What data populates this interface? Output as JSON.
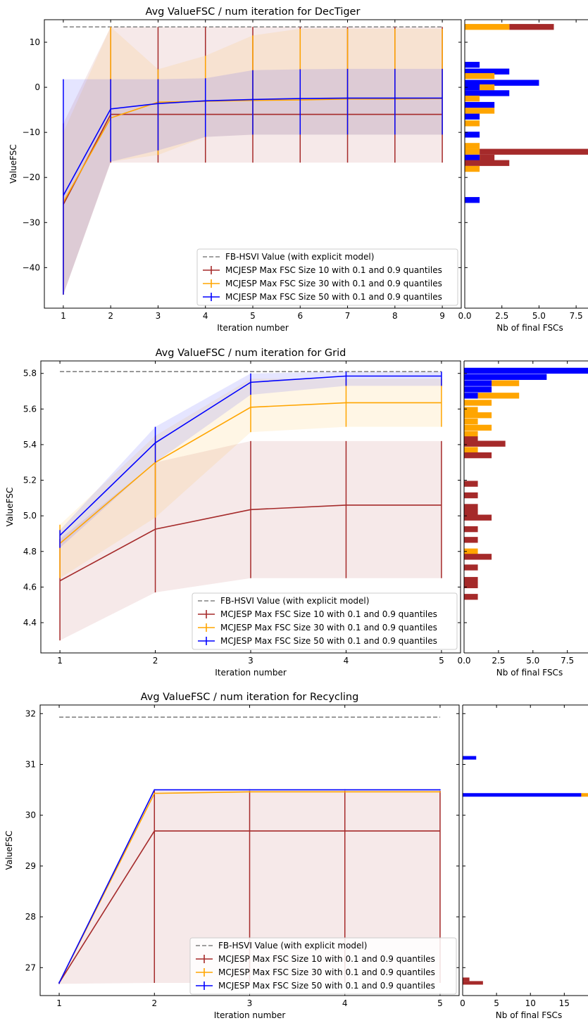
{
  "colors": {
    "fbhsvi": "#808080",
    "size10": "#A52A2A",
    "size30": "#FFA500",
    "size50": "#0000FF"
  },
  "shared": {
    "ylabel": "ValueFSC",
    "xlabel": "Iteration number",
    "hist_xlabel": "Nb of final FSCs",
    "legend": [
      "FB-HSVI Value (with explicit model)",
      "MCJESP Max FSC Size 10 with 0.1 and 0.9 quantiles",
      "MCJESP Max FSC Size 30 with 0.1 and 0.9 quantiles",
      "MCJESP Max FSC Size 50 with 0.1 and 0.9 quantiles"
    ]
  },
  "chart_data": [
    {
      "type": "line",
      "title": "Avg ValueFSC / num iteration for DecTiger",
      "xlabel": "Iteration number",
      "ylabel": "ValueFSC",
      "x": [
        1,
        2,
        3,
        4,
        5,
        6,
        7,
        8,
        9
      ],
      "xlim": [
        0.6,
        9.4
      ],
      "ylim": [
        -49,
        15
      ],
      "xticks": [
        "1",
        "2",
        "3",
        "4",
        "5",
        "6",
        "7",
        "8",
        "9"
      ],
      "yticks": [
        10,
        0,
        -10,
        -20,
        -30,
        -40
      ],
      "yticklabels": [
        "10",
        "0",
        "−10",
        "−20",
        "−30",
        "−40"
      ],
      "legend_loc": "lower right",
      "reference": {
        "name": "FB-HSVI Value (with explicit model)",
        "value": 13.4
      },
      "series": [
        {
          "name": "MCJESP Max FSC Size 10 with 0.1 and 0.9 quantiles",
          "color": "size10",
          "values": [
            -26,
            -6,
            -6,
            -6,
            -6,
            -6,
            -6,
            -6,
            -6
          ],
          "low": [
            -46,
            -16.7,
            -16.7,
            -16.7,
            -16.7,
            -16.7,
            -16.7,
            -16.7,
            -16.7
          ],
          "high": [
            -8,
            13.4,
            13.4,
            13.4,
            13.4,
            13.4,
            13.4,
            13.4,
            13.4
          ]
        },
        {
          "name": "MCJESP Max FSC Size 30 with 0.1 and 0.9 quantiles",
          "color": "size30",
          "values": [
            -25.5,
            -6.8,
            -3.3,
            -3.1,
            -2.9,
            -2.8,
            -2.6,
            -2.6,
            -2.5
          ],
          "low": [
            -46,
            -16.5,
            -15,
            -11,
            -10.5,
            -10.5,
            -10.5,
            -10.5,
            -10.5
          ],
          "high": [
            -10,
            13.4,
            4,
            7,
            11.5,
            13,
            13,
            13,
            13
          ]
        },
        {
          "name": "MCJESP Max FSC Size 50 with 0.1 and 0.9 quantiles",
          "color": "size50",
          "values": [
            -24,
            -4.8,
            -3.6,
            -3,
            -2.7,
            -2.5,
            -2.4,
            -2.4,
            -2.4
          ],
          "low": [
            -46,
            -16.5,
            -14,
            -11,
            -10.5,
            -10.5,
            -10.5,
            -10.5,
            -10.5
          ],
          "high": [
            1.8,
            1.8,
            1.8,
            2,
            3.8,
            4,
            4.1,
            4.1,
            4.1
          ]
        }
      ],
      "histogram": {
        "xlabel": "Nb of final FSCs",
        "xlim": [
          0,
          8.3
        ],
        "xticks": [
          0,
          2.5,
          5,
          7.5
        ],
        "xticklabels": [
          "0.0",
          "2.5",
          "5.0",
          "7.5"
        ],
        "bin_height": 1.3,
        "bars": [
          {
            "y": 13.4,
            "left": 3,
            "width": 3,
            "color": "size10"
          },
          {
            "y": 13.4,
            "left": 0,
            "width": 3,
            "color": "size30"
          },
          {
            "y": 5,
            "left": 0,
            "width": 1,
            "color": "size50"
          },
          {
            "y": 3.5,
            "left": 0,
            "width": 3,
            "color": "size50"
          },
          {
            "y": 2.5,
            "left": 0,
            "width": 2,
            "color": "size30"
          },
          {
            "y": 1,
            "left": 0,
            "width": 5,
            "color": "size50"
          },
          {
            "y": 0,
            "left": 0,
            "width": 1,
            "color": "size50"
          },
          {
            "y": 0,
            "left": 1,
            "width": 1,
            "color": "size30"
          },
          {
            "y": -1.3,
            "left": 0,
            "width": 3,
            "color": "size50"
          },
          {
            "y": -2.5,
            "left": 0,
            "width": 1,
            "color": "size30"
          },
          {
            "y": -3.9,
            "left": 0,
            "width": 2,
            "color": "size50"
          },
          {
            "y": -5.2,
            "left": 0,
            "width": 2,
            "color": "size30"
          },
          {
            "y": -6.5,
            "left": 0,
            "width": 1,
            "color": "size50"
          },
          {
            "y": -8,
            "left": 0,
            "width": 1,
            "color": "size30"
          },
          {
            "y": -10.5,
            "left": 0,
            "width": 1,
            "color": "size50"
          },
          {
            "y": -13,
            "left": 0,
            "width": 1,
            "color": "size30"
          },
          {
            "y": -14.3,
            "left": 1,
            "width": 8.3,
            "color": "size10"
          },
          {
            "y": -14.3,
            "left": 0,
            "width": 1,
            "color": "size30"
          },
          {
            "y": -15.6,
            "left": 1,
            "width": 1,
            "color": "size10"
          },
          {
            "y": -15.6,
            "left": 0,
            "width": 1,
            "color": "size50"
          },
          {
            "y": -16.8,
            "left": 0,
            "width": 3,
            "color": "size10"
          },
          {
            "y": -18.1,
            "left": 0,
            "width": 1,
            "color": "size30"
          },
          {
            "y": -25,
            "left": 0,
            "width": 1,
            "color": "size50"
          }
        ]
      }
    },
    {
      "type": "line",
      "title": "Avg ValueFSC / num iteration for Grid",
      "xlabel": "Iteration number",
      "ylabel": "ValueFSC",
      "x": [
        1,
        2,
        3,
        4,
        5
      ],
      "xlim": [
        0.8,
        5.2
      ],
      "ylim": [
        4.23,
        5.87
      ],
      "xticks": [
        "1",
        "2",
        "3",
        "4",
        "5"
      ],
      "yticks": [
        5.8,
        5.6,
        5.4,
        5.2,
        5.0,
        4.8,
        4.6,
        4.4
      ],
      "yticklabels": [
        "5.8",
        "5.6",
        "5.4",
        "5.2",
        "5.0",
        "4.8",
        "4.6",
        "4.4"
      ],
      "legend_loc": "lower right",
      "reference": {
        "name": "FB-HSVI Value (with explicit model)",
        "value": 5.81
      },
      "series": [
        {
          "name": "MCJESP Max FSC Size 10 with 0.1 and 0.9 quantiles",
          "color": "size10",
          "values": [
            4.635,
            4.925,
            5.035,
            5.06,
            5.06
          ],
          "low": [
            4.3,
            4.57,
            4.65,
            4.65,
            4.65
          ],
          "high": [
            4.87,
            5.3,
            5.42,
            5.42,
            5.42
          ]
        },
        {
          "name": "MCJESP Max FSC Size 30 with 0.1 and 0.9 quantiles",
          "color": "size30",
          "values": [
            4.845,
            5.3,
            5.61,
            5.635,
            5.635
          ],
          "low": [
            4.65,
            4.99,
            5.47,
            5.5,
            5.5
          ],
          "high": [
            4.95,
            5.45,
            5.77,
            5.77,
            5.77
          ]
        },
        {
          "name": "MCJESP Max FSC Size 50 with 0.1 and 0.9 quantiles",
          "color": "size50",
          "values": [
            4.89,
            5.41,
            5.75,
            5.785,
            5.785
          ],
          "low": [
            4.82,
            5.3,
            5.68,
            5.73,
            5.73
          ],
          "high": [
            4.92,
            5.5,
            5.8,
            5.81,
            5.81
          ]
        }
      ],
      "histogram": {
        "xlabel": "Nb of final FSCs",
        "xlim": [
          0,
          9
        ],
        "xticks": [
          0,
          2.5,
          5,
          7.5
        ],
        "xticklabels": [
          "0.0",
          "2.5",
          "5.0",
          "7.5"
        ],
        "bin_height": 0.033,
        "bars": [
          {
            "y": 5.815,
            "left": 0,
            "width": 9,
            "color": "size50"
          },
          {
            "y": 5.78,
            "left": 0,
            "width": 6,
            "color": "size50"
          },
          {
            "y": 5.745,
            "left": 2,
            "width": 2,
            "color": "size30"
          },
          {
            "y": 5.745,
            "left": 0,
            "width": 2,
            "color": "size50"
          },
          {
            "y": 5.71,
            "left": 0,
            "width": 2,
            "color": "size50"
          },
          {
            "y": 5.675,
            "left": 1,
            "width": 3,
            "color": "size30"
          },
          {
            "y": 5.675,
            "left": 0,
            "width": 1,
            "color": "size50"
          },
          {
            "y": 5.635,
            "left": 0,
            "width": 2,
            "color": "size30"
          },
          {
            "y": 5.595,
            "left": 0,
            "width": 1,
            "color": "size30"
          },
          {
            "y": 5.565,
            "left": 0,
            "width": 2,
            "color": "size30"
          },
          {
            "y": 5.53,
            "left": 0,
            "width": 1,
            "color": "size30"
          },
          {
            "y": 5.495,
            "left": 0,
            "width": 2,
            "color": "size30"
          },
          {
            "y": 5.46,
            "left": 0,
            "width": 1,
            "color": "size30"
          },
          {
            "y": 5.43,
            "left": 0,
            "width": 1,
            "color": "size10"
          },
          {
            "y": 5.405,
            "left": 0,
            "width": 3,
            "color": "size10"
          },
          {
            "y": 5.37,
            "left": 0,
            "width": 1,
            "color": "size30"
          },
          {
            "y": 5.34,
            "left": 0,
            "width": 2,
            "color": "size10"
          },
          {
            "y": 5.18,
            "left": 0,
            "width": 1,
            "color": "size10"
          },
          {
            "y": 5.115,
            "left": 0,
            "width": 1,
            "color": "size10"
          },
          {
            "y": 5.05,
            "left": 0,
            "width": 1,
            "color": "size10"
          },
          {
            "y": 5.02,
            "left": 0,
            "width": 1,
            "color": "size10"
          },
          {
            "y": 4.99,
            "left": 0,
            "width": 2,
            "color": "size10"
          },
          {
            "y": 4.925,
            "left": 0,
            "width": 1,
            "color": "size10"
          },
          {
            "y": 4.865,
            "left": 0,
            "width": 1,
            "color": "size10"
          },
          {
            "y": 4.8,
            "left": 0,
            "width": 1,
            "color": "size30"
          },
          {
            "y": 4.77,
            "left": 0,
            "width": 2,
            "color": "size10"
          },
          {
            "y": 4.71,
            "left": 0,
            "width": 1,
            "color": "size10"
          },
          {
            "y": 4.64,
            "left": 0,
            "width": 1,
            "color": "size10"
          },
          {
            "y": 4.61,
            "left": 0,
            "width": 1,
            "color": "size10"
          },
          {
            "y": 4.545,
            "left": 0,
            "width": 1,
            "color": "size10"
          }
        ]
      }
    },
    {
      "type": "line",
      "title": "Avg ValueFSC / num iteration for Recycling",
      "xlabel": "Iteration number",
      "ylabel": "ValueFSC",
      "x": [
        1,
        2,
        3,
        4,
        5
      ],
      "xlim": [
        0.8,
        5.2
      ],
      "ylim": [
        26.45,
        32.17
      ],
      "xticks": [
        "1",
        "2",
        "3",
        "4",
        "5"
      ],
      "yticks": [
        32,
        31,
        30,
        29,
        28,
        27
      ],
      "yticklabels": [
        "32",
        "31",
        "30",
        "29",
        "28",
        "27"
      ],
      "legend_loc": "lower right",
      "reference": {
        "name": "FB-HSVI Value (with explicit model)",
        "value": 31.93
      },
      "series": [
        {
          "name": "MCJESP Max FSC Size 10 with 0.1 and 0.9 quantiles",
          "color": "size10",
          "values": [
            26.7,
            29.69,
            29.69,
            29.69,
            29.69
          ],
          "low": [
            26.68,
            26.7,
            26.7,
            26.7,
            26.7
          ],
          "high": [
            26.72,
            30.48,
            30.48,
            30.48,
            30.48
          ]
        },
        {
          "name": "MCJESP Max FSC Size 30 with 0.1 and 0.9 quantiles",
          "color": "size30",
          "values": [
            26.7,
            30.43,
            30.46,
            30.46,
            30.46
          ],
          "low": [
            26.68,
            30.42,
            30.45,
            30.45,
            30.45
          ],
          "high": [
            26.72,
            30.44,
            30.47,
            30.47,
            30.47
          ]
        },
        {
          "name": "MCJESP Max FSC Size 50 with 0.1 and 0.9 quantiles",
          "color": "size50",
          "values": [
            26.7,
            30.5,
            30.5,
            30.5,
            30.5
          ],
          "low": [
            26.68,
            30.49,
            30.49,
            30.49,
            30.49
          ],
          "high": [
            26.72,
            30.51,
            30.51,
            30.51,
            30.51
          ]
        }
      ],
      "histogram": {
        "xlabel": "Nb of final FSCs",
        "xlim": [
          0,
          18.5
        ],
        "xticks": [
          0,
          5,
          10,
          15
        ],
        "xticklabels": [
          "0",
          "5",
          "10",
          "15"
        ],
        "bin_height": 0.07,
        "bars": [
          {
            "y": 31.13,
            "left": 0,
            "width": 2,
            "color": "size50"
          },
          {
            "y": 30.4,
            "left": 17.5,
            "width": 1,
            "color": "size30"
          },
          {
            "y": 30.4,
            "left": 0,
            "width": 17.5,
            "color": "size50"
          },
          {
            "y": 26.77,
            "left": 0,
            "width": 1,
            "color": "size10"
          },
          {
            "y": 26.7,
            "left": 0,
            "width": 3,
            "color": "size10"
          }
        ]
      }
    }
  ]
}
